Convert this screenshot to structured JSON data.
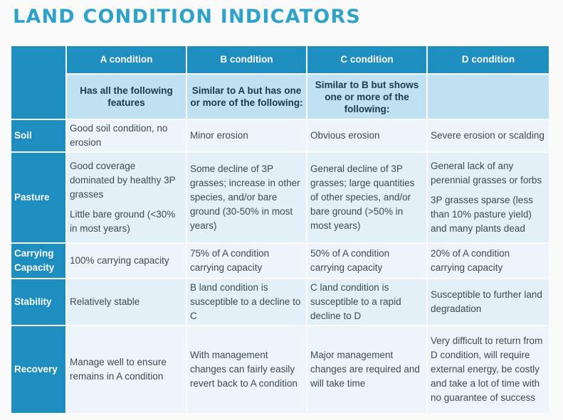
{
  "title": "LAND CONDITION INDICATORS",
  "columns": [
    {
      "header": "A condition",
      "subheader": "Has all the following features"
    },
    {
      "header": "B condition",
      "subheader": "Similar to A but has one or more of the following:"
    },
    {
      "header": "C condition",
      "subheader": "Similar to B but shows one or more of the following:"
    },
    {
      "header": "D condition",
      "subheader": ""
    }
  ],
  "rows": [
    {
      "label": "Soil",
      "cells": [
        [
          "Good soil condition, no erosion"
        ],
        [
          "Minor erosion"
        ],
        [
          "Obvious erosion"
        ],
        [
          "Severe erosion or scalding"
        ]
      ]
    },
    {
      "label": "Pasture",
      "cells": [
        [
          "Good coverage dominated by healthy 3P grasses",
          "Little bare ground (<30% in most years)"
        ],
        [
          "Some decline of 3P grasses; increase in other species, and/or bare ground (30-50% in most years)"
        ],
        [
          "General decline of 3P grasses; large quantities of other species, and/or bare ground (>50% in most years)"
        ],
        [
          "General lack of any perennial grasses or forbs",
          "3P grasses sparse (less than 10% pasture yield) and many plants dead"
        ]
      ]
    },
    {
      "label": "Carrying Capacity",
      "cells": [
        [
          "100% carrying capacity"
        ],
        [
          "75% of A condition carrying capacity"
        ],
        [
          "50% of A condition carrying capacity"
        ],
        [
          "20% of A condition carrying capacity"
        ]
      ]
    },
    {
      "label": "Stability",
      "cells": [
        [
          "Relatively stable"
        ],
        [
          "B land condition is susceptible to a decline to C"
        ],
        [
          "C land condition is susceptible to a rapid decline to D"
        ],
        [
          "Susceptible to further land degradation"
        ]
      ]
    },
    {
      "label": "Recovery",
      "cells": [
        [
          "Manage well to ensure remains in A condition"
        ],
        [
          "With management changes can fairly easily revert back to A condition"
        ],
        [
          "Major management changes are required and will take time"
        ],
        [
          "Very difficult to return from D condition, will require external energy, be costly and take a lot of time with no guarantee of success"
        ]
      ]
    }
  ]
}
